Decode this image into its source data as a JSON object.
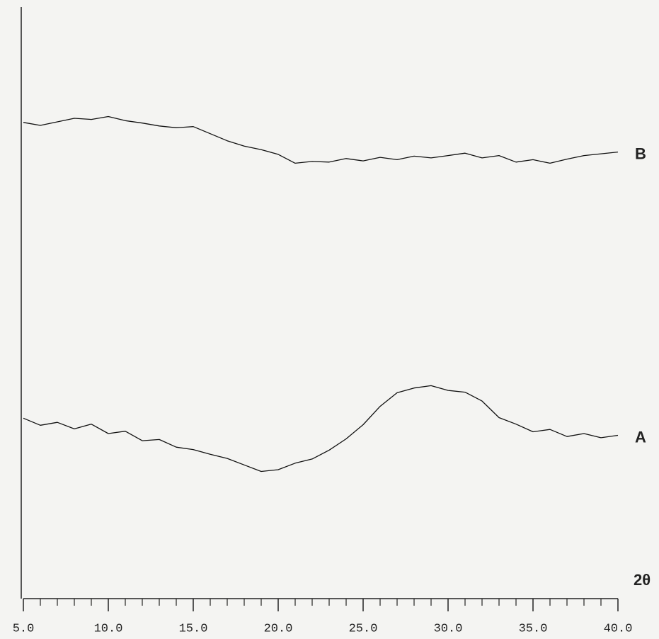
{
  "chart_data": {
    "type": "line",
    "x_label": "2θ",
    "x": [
      5,
      6,
      7,
      8,
      9,
      10,
      11,
      12,
      13,
      14,
      15,
      16,
      17,
      18,
      19,
      20,
      21,
      22,
      23,
      24,
      25,
      26,
      27,
      28,
      29,
      30,
      31,
      32,
      33,
      34,
      35,
      36,
      37,
      38,
      39,
      40
    ],
    "series": [
      {
        "name": "B",
        "color": "#111111",
        "values": [
          80.5,
          80.0,
          80.6,
          81.2,
          81.0,
          81.5,
          80.8,
          80.4,
          79.9,
          79.6,
          79.8,
          78.6,
          77.4,
          76.5,
          75.9,
          75.1,
          73.6,
          73.9,
          73.8,
          74.4,
          74.0,
          74.6,
          74.2,
          74.8,
          74.5,
          74.9,
          75.3,
          74.5,
          74.9,
          73.8,
          74.2,
          73.6,
          74.3,
          74.9,
          75.2,
          75.5
        ]
      },
      {
        "name": "A",
        "color": "#111111",
        "values": [
          30.5,
          29.3,
          29.8,
          28.7,
          29.5,
          27.9,
          28.3,
          26.7,
          26.9,
          25.6,
          25.2,
          24.4,
          23.7,
          22.6,
          21.5,
          21.8,
          22.9,
          23.6,
          25.1,
          27.0,
          29.4,
          32.5,
          34.8,
          35.6,
          36.0,
          35.2,
          34.9,
          33.4,
          30.6,
          29.5,
          28.2,
          28.6,
          27.4,
          27.9,
          27.2,
          27.6
        ]
      }
    ],
    "xlim": [
      5,
      40
    ],
    "ylim": [
      0,
      100
    ],
    "xticks": [
      {
        "value": 5,
        "label": "5.0"
      },
      {
        "value": 10,
        "label": "10.0"
      },
      {
        "value": 15,
        "label": "15.0"
      },
      {
        "value": 20,
        "label": "20.0"
      },
      {
        "value": 25,
        "label": "25.0"
      },
      {
        "value": 30,
        "label": "30.0"
      },
      {
        "value": 35,
        "label": "35.0"
      },
      {
        "value": 40,
        "label": "40.0"
      }
    ],
    "xminorticks": [
      6,
      7,
      8,
      9,
      11,
      12,
      13,
      14,
      16,
      17,
      18,
      19,
      21,
      22,
      23,
      24,
      26,
      27,
      28,
      29,
      31,
      32,
      33,
      34,
      36,
      37,
      38,
      39
    ]
  }
}
